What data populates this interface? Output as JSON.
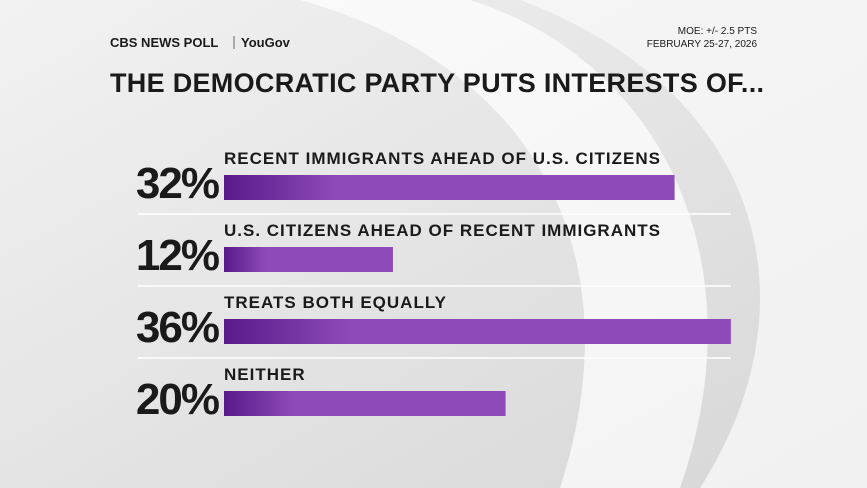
{
  "header": {
    "brand": "CBS NEWS POLL",
    "partner": "YouGov",
    "moe": "MOE: +/- 2.5 PTS",
    "dates": "FEBRUARY 25-27, 2026"
  },
  "chart_data": {
    "type": "bar",
    "title": "THE DEMOCRATIC PARTY PUTS INTERESTS OF...",
    "categories": [
      "RECENT IMMIGRANTS AHEAD OF U.S. CITIZENS",
      "U.S. CITIZENS AHEAD OF RECENT IMMIGRANTS",
      "TREATS BOTH EQUALLY",
      "NEITHER"
    ],
    "values": [
      32,
      12,
      36,
      20
    ],
    "value_labels": [
      "32%",
      "12%",
      "36%",
      "20%"
    ],
    "color": "#8e4ab8"
  }
}
